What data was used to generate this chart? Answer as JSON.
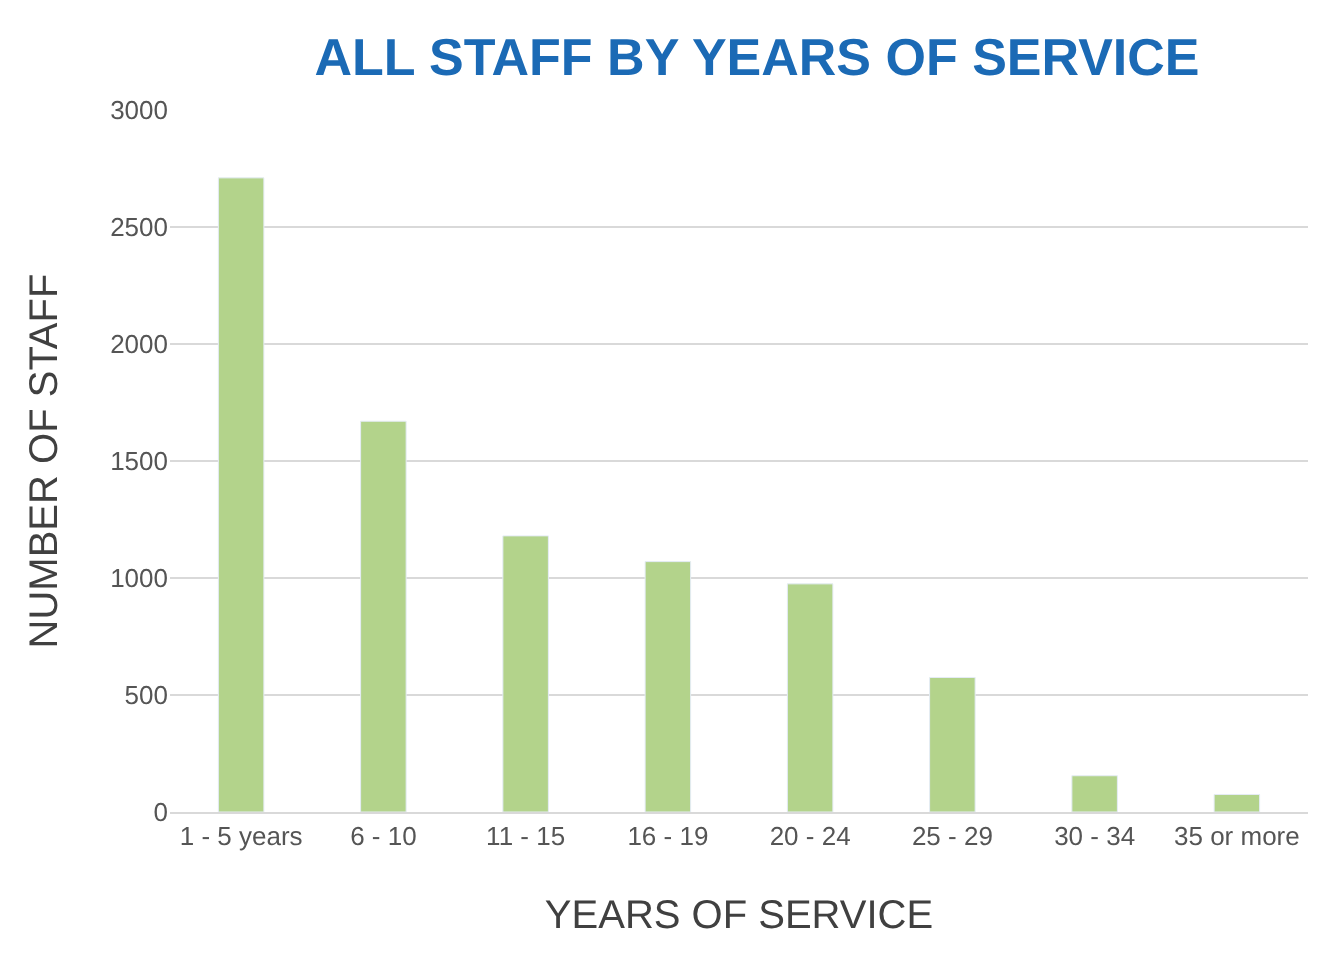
{
  "chart_data": {
    "type": "bar",
    "title": "ALL STAFF BY YEARS OF SERVICE",
    "xlabel": "YEARS OF SERVICE",
    "ylabel": "NUMBER OF STAFF",
    "categories": [
      "1 - 5 years",
      "6 - 10",
      "11 - 15",
      "16 - 19",
      "20 - 24",
      "25 - 29",
      "30 - 34",
      "35 or more"
    ],
    "values": [
      2710,
      1670,
      1180,
      1070,
      975,
      575,
      155,
      75
    ],
    "color": "#b3d38b",
    "ylim": [
      0,
      3000
    ],
    "yticks": [
      0,
      500,
      1000,
      1500,
      2000,
      2500,
      3000
    ],
    "grid": "y",
    "legend": false
  }
}
